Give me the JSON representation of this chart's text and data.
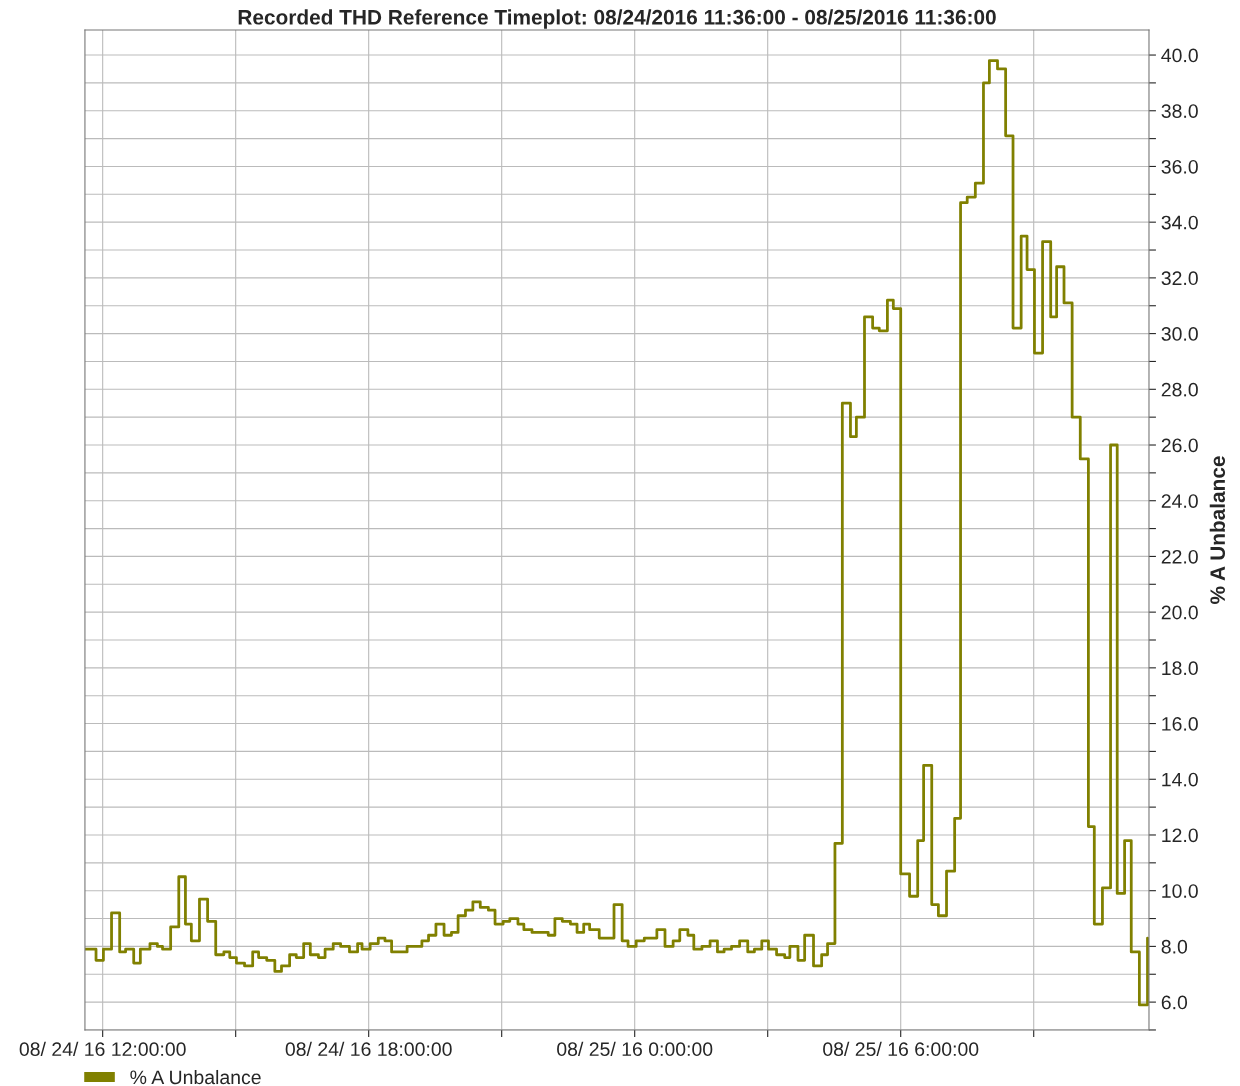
{
  "chart_data": {
    "type": "step",
    "title": "Recorded THD Reference Timeplot: 08/24/2016 11:36:00 - 08/25/2016 11:36:00",
    "ylabel": "% A Unbalance",
    "x": [
      "2016-08-24T11:36",
      "2016-08-24T11:51",
      "2016-08-24T12:01",
      "2016-08-24T12:12",
      "2016-08-24T12:23",
      "2016-08-24T12:31",
      "2016-08-24T12:42",
      "2016-08-24T12:51",
      "2016-08-24T13:04",
      "2016-08-24T13:14",
      "2016-08-24T13:21",
      "2016-08-24T13:32",
      "2016-08-24T13:43",
      "2016-08-24T13:52",
      "2016-08-24T14:00",
      "2016-08-24T14:11",
      "2016-08-24T14:22",
      "2016-08-24T14:33",
      "2016-08-24T14:44",
      "2016-08-24T14:52",
      "2016-08-24T15:01",
      "2016-08-24T15:12",
      "2016-08-24T15:23",
      "2016-08-24T15:31",
      "2016-08-24T15:42",
      "2016-08-24T15:53",
      "2016-08-24T16:02",
      "2016-08-24T16:13",
      "2016-08-24T16:22",
      "2016-08-24T16:32",
      "2016-08-24T16:41",
      "2016-08-24T16:52",
      "2016-08-24T17:01",
      "2016-08-24T17:12",
      "2016-08-24T17:22",
      "2016-08-24T17:34",
      "2016-08-24T17:45",
      "2016-08-24T17:51",
      "2016-08-24T18:02",
      "2016-08-24T18:13",
      "2016-08-24T18:22",
      "2016-08-24T18:31",
      "2016-08-24T18:52",
      "2016-08-24T19:12",
      "2016-08-24T19:21",
      "2016-08-24T19:31",
      "2016-08-24T19:42",
      "2016-08-24T19:52",
      "2016-08-24T20:01",
      "2016-08-24T20:11",
      "2016-08-24T20:21",
      "2016-08-24T20:31",
      "2016-08-24T20:42",
      "2016-08-24T20:51",
      "2016-08-24T21:02",
      "2016-08-24T21:11",
      "2016-08-24T21:22",
      "2016-08-24T21:30",
      "2016-08-24T21:41",
      "2016-08-24T22:03",
      "2016-08-24T22:12",
      "2016-08-24T22:22",
      "2016-08-24T22:33",
      "2016-08-24T22:42",
      "2016-08-24T22:51",
      "2016-08-24T22:59",
      "2016-08-24T23:12",
      "2016-08-24T23:32",
      "2016-08-24T23:43",
      "2016-08-24T23:51",
      "2016-08-25T00:02",
      "2016-08-25T00:13",
      "2016-08-25T00:30",
      "2016-08-25T00:41",
      "2016-08-25T00:52",
      "2016-08-25T01:01",
      "2016-08-25T01:12",
      "2016-08-25T01:20",
      "2016-08-25T01:31",
      "2016-08-25T01:42",
      "2016-08-25T01:52",
      "2016-08-25T02:01",
      "2016-08-25T02:11",
      "2016-08-25T02:22",
      "2016-08-25T02:33",
      "2016-08-25T02:42",
      "2016-08-25T02:52",
      "2016-08-25T03:01",
      "2016-08-25T03:12",
      "2016-08-25T03:23",
      "2016-08-25T03:30",
      "2016-08-25T03:41",
      "2016-08-25T03:50",
      "2016-08-25T04:02",
      "2016-08-25T04:13",
      "2016-08-25T04:21",
      "2016-08-25T04:31",
      "2016-08-25T04:41",
      "2016-08-25T04:52",
      "2016-08-25T05:00",
      "2016-08-25T05:11",
      "2016-08-25T05:22",
      "2016-08-25T05:31",
      "2016-08-25T05:42",
      "2016-08-25T05:50",
      "2016-08-25T06:00",
      "2016-08-25T06:12",
      "2016-08-25T06:23",
      "2016-08-25T06:31",
      "2016-08-25T06:42",
      "2016-08-25T06:51",
      "2016-08-25T07:02",
      "2016-08-25T07:13",
      "2016-08-25T07:21",
      "2016-08-25T07:30",
      "2016-08-25T07:41",
      "2016-08-25T07:52",
      "2016-08-25T08:00",
      "2016-08-25T08:11",
      "2016-08-25T08:22",
      "2016-08-25T08:32",
      "2016-08-25T08:43",
      "2016-08-25T08:51",
      "2016-08-25T09:01",
      "2016-08-25T09:12",
      "2016-08-25T09:23",
      "2016-08-25T09:31",
      "2016-08-25T09:41",
      "2016-08-25T09:52",
      "2016-08-25T10:03",
      "2016-08-25T10:14",
      "2016-08-25T10:22",
      "2016-08-25T10:33",
      "2016-08-25T10:44",
      "2016-08-25T10:53",
      "2016-08-25T11:03",
      "2016-08-25T11:12",
      "2016-08-25T11:23",
      "2016-08-25T11:34"
    ],
    "series": [
      {
        "name": "% A Unbalance",
        "color": "#808000",
        "values": [
          7.9,
          7.5,
          7.9,
          9.2,
          7.8,
          7.9,
          7.4,
          7.9,
          8.1,
          8.0,
          7.9,
          8.7,
          10.5,
          8.8,
          8.2,
          9.7,
          8.9,
          7.7,
          7.8,
          7.6,
          7.4,
          7.3,
          7.8,
          7.6,
          7.5,
          7.1,
          7.3,
          7.7,
          7.6,
          8.1,
          7.7,
          7.6,
          7.9,
          8.1,
          8.0,
          7.8,
          8.1,
          7.9,
          8.1,
          8.3,
          8.2,
          7.8,
          8.0,
          8.2,
          8.4,
          8.8,
          8.4,
          8.5,
          9.1,
          9.3,
          9.6,
          9.4,
          9.3,
          8.8,
          8.9,
          9.0,
          8.8,
          8.6,
          8.5,
          8.4,
          9.0,
          8.9,
          8.8,
          8.5,
          8.8,
          8.6,
          8.3,
          9.5,
          8.2,
          8.0,
          8.2,
          8.3,
          8.6,
          8.0,
          8.2,
          8.6,
          8.4,
          7.9,
          8.0,
          8.2,
          7.8,
          7.9,
          8.0,
          8.2,
          7.8,
          7.9,
          8.2,
          7.9,
          7.7,
          7.6,
          8.0,
          7.5,
          8.4,
          7.3,
          7.7,
          8.1,
          11.7,
          27.5,
          26.3,
          27.0,
          30.6,
          30.2,
          30.1,
          31.2,
          30.9,
          10.6,
          9.8,
          11.8,
          14.5,
          9.5,
          9.1,
          10.7,
          12.6,
          34.7,
          34.9,
          35.4,
          39.0,
          39.8,
          39.5,
          37.1,
          30.2,
          33.5,
          32.3,
          29.3,
          33.3,
          30.6,
          32.4,
          31.1,
          27.0,
          25.5,
          12.3,
          8.8,
          10.1,
          26.0,
          9.9,
          11.8,
          7.8,
          5.9,
          8.3
        ]
      }
    ],
    "xlim": [
      "2016-08-24T11:36",
      "2016-08-25T11:36"
    ],
    "xticks": [
      {
        "value": "2016-08-24T12:00",
        "label": "08/ 24/ 16 12:00:00"
      },
      {
        "value": "2016-08-24T15:00",
        "label": null
      },
      {
        "value": "2016-08-24T18:00",
        "label": "08/ 24/ 16 18:00:00"
      },
      {
        "value": "2016-08-24T21:00",
        "label": null
      },
      {
        "value": "2016-08-25T00:00",
        "label": "08/ 25/ 16 0:00:00"
      },
      {
        "value": "2016-08-25T03:00",
        "label": null
      },
      {
        "value": "2016-08-25T06:00",
        "label": "08/ 25/ 16 6:00:00"
      },
      {
        "value": "2016-08-25T09:00",
        "label": null
      }
    ],
    "ylim": [
      5.0,
      40.9
    ],
    "yticks": [
      {
        "value": 5,
        "label": null
      },
      {
        "value": 6,
        "label": "6.0"
      },
      {
        "value": 7,
        "label": null
      },
      {
        "value": 8,
        "label": "8.0"
      },
      {
        "value": 9,
        "label": null
      },
      {
        "value": 10,
        "label": "10.0"
      },
      {
        "value": 11,
        "label": null
      },
      {
        "value": 12,
        "label": "12.0"
      },
      {
        "value": 13,
        "label": null
      },
      {
        "value": 14,
        "label": "14.0"
      },
      {
        "value": 15,
        "label": null
      },
      {
        "value": 16,
        "label": "16.0"
      },
      {
        "value": 17,
        "label": null
      },
      {
        "value": 18,
        "label": "18.0"
      },
      {
        "value": 19,
        "label": null
      },
      {
        "value": 20,
        "label": "20.0"
      },
      {
        "value": 21,
        "label": null
      },
      {
        "value": 22,
        "label": "22.0"
      },
      {
        "value": 23,
        "label": null
      },
      {
        "value": 24,
        "label": "24.0"
      },
      {
        "value": 25,
        "label": null
      },
      {
        "value": 26,
        "label": "26.0"
      },
      {
        "value": 27,
        "label": null
      },
      {
        "value": 28,
        "label": "28.0"
      },
      {
        "value": 29,
        "label": null
      },
      {
        "value": 30,
        "label": "30.0"
      },
      {
        "value": 31,
        "label": null
      },
      {
        "value": 32,
        "label": "32.0"
      },
      {
        "value": 33,
        "label": null
      },
      {
        "value": 34,
        "label": "34.0"
      },
      {
        "value": 35,
        "label": null
      },
      {
        "value": 36,
        "label": "36.0"
      },
      {
        "value": 37,
        "label": null
      },
      {
        "value": 38,
        "label": "38.0"
      },
      {
        "value": 39,
        "label": null
      },
      {
        "value": 40,
        "label": "40.0"
      }
    ],
    "grid": true,
    "legend": "bottom left"
  }
}
